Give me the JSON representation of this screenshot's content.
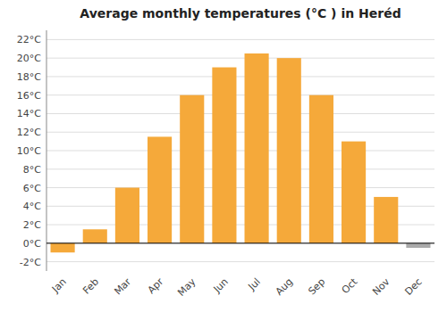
{
  "chart_data": {
    "type": "bar",
    "title": "Average monthly temperatures (°C ) in Heréd",
    "categories": [
      "Jan",
      "Feb",
      "Mar",
      "Apr",
      "May",
      "Jun",
      "Jul",
      "Aug",
      "Sep",
      "Oct",
      "Nov",
      "Dec"
    ],
    "values": [
      -1.0,
      1.5,
      6.0,
      11.5,
      16.0,
      19.0,
      20.5,
      20.0,
      16.0,
      11.0,
      5.0,
      -0.5
    ],
    "colors": [
      "#F5A93A",
      "#F5A93A",
      "#F5A93A",
      "#F5A93A",
      "#F5A93A",
      "#F5A93A",
      "#F5A93A",
      "#F5A93A",
      "#F5A93A",
      "#F5A93A",
      "#F5A93A",
      "#AAAAAA"
    ],
    "ylim": [
      -3,
      23
    ],
    "yticks": [
      {
        "value": -2,
        "label": "-2°C"
      },
      {
        "value": 0,
        "label": "0°C"
      },
      {
        "value": 2,
        "label": "2°C"
      },
      {
        "value": 4,
        "label": "4°C"
      },
      {
        "value": 6,
        "label": "6°C"
      },
      {
        "value": 8,
        "label": "8°C"
      },
      {
        "value": 10,
        "label": "10°C"
      },
      {
        "value": 12,
        "label": "12°C"
      },
      {
        "value": 14,
        "label": "14°C"
      },
      {
        "value": 16,
        "label": "16°C"
      },
      {
        "value": 18,
        "label": "18°C"
      },
      {
        "value": 20,
        "label": "20°C"
      },
      {
        "value": 22,
        "label": "22°C"
      }
    ],
    "grid": true
  }
}
